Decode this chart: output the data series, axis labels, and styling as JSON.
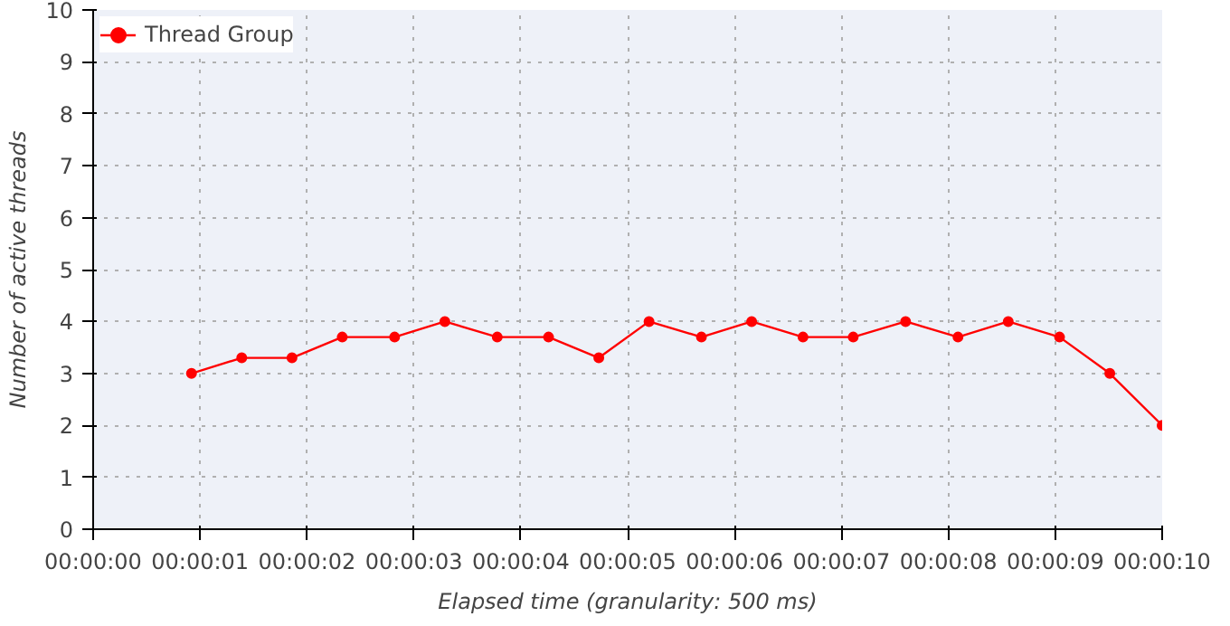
{
  "chart_data": {
    "type": "line",
    "xlabel": "Elapsed time (granularity: 500 ms)",
    "ylabel": "Number of active threads",
    "x": [
      0.92,
      1.39,
      1.86,
      2.33,
      2.82,
      3.29,
      3.78,
      4.26,
      4.73,
      5.2,
      5.69,
      6.16,
      6.64,
      7.11,
      7.6,
      8.09,
      8.56,
      9.04,
      9.51,
      10
    ],
    "series": [
      {
        "name": "Thread Group",
        "color": "#ff0000",
        "values": [
          3,
          3.3,
          3.3,
          3.7,
          3.7,
          4,
          3.7,
          3.7,
          3.3,
          4,
          3.7,
          4,
          3.7,
          3.7,
          4,
          3.7,
          4,
          3.7,
          3,
          2
        ]
      }
    ],
    "xlim": [
      0,
      10
    ],
    "ylim": [
      0,
      10
    ],
    "xticks": [
      {
        "value": 0,
        "label": "00:00:00"
      },
      {
        "value": 1,
        "label": "00:00:01"
      },
      {
        "value": 2,
        "label": "00:00:02"
      },
      {
        "value": 3,
        "label": "00:00:03"
      },
      {
        "value": 4,
        "label": "00:00:04"
      },
      {
        "value": 5,
        "label": "00:00:05"
      },
      {
        "value": 6,
        "label": "00:00:06"
      },
      {
        "value": 7,
        "label": "00:00:07"
      },
      {
        "value": 8,
        "label": "00:00:08"
      },
      {
        "value": 9,
        "label": "00:00:09"
      },
      {
        "value": 10,
        "label": "00:00:10"
      }
    ],
    "yticks": [
      0,
      1,
      2,
      3,
      4,
      5,
      6,
      7,
      8,
      9,
      10
    ],
    "grid": true,
    "legend": "top left",
    "marker": "circle",
    "line_style": "solid"
  }
}
